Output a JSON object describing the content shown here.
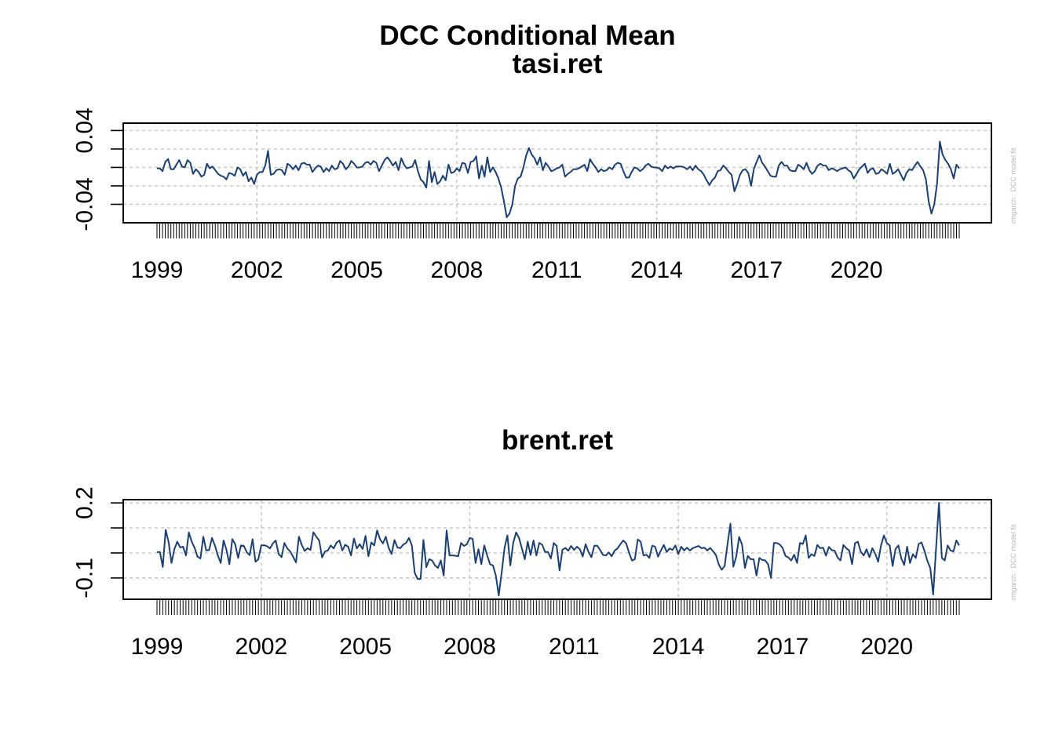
{
  "figure_title": "DCC Conditional Mean",
  "series_color": "#1b3f73",
  "chart_data": [
    {
      "type": "line",
      "title": "tasi.ret",
      "x_start": "1999-01",
      "frequency": "monthly",
      "x_tick_labels": [
        "1999",
        "2002",
        "2005",
        "2008",
        "2011",
        "2014",
        "2017",
        "2020"
      ],
      "x_tick_values": [
        1999,
        2002,
        2005,
        2008,
        2011,
        2014,
        2017,
        2020
      ],
      "y_ticks": [
        0.04,
        0.02,
        0.0,
        -0.02,
        -0.04
      ],
      "y_tick_labels": [
        "0.04",
        "-0.04"
      ],
      "ylim": [
        -0.06,
        0.048
      ],
      "grid": true,
      "watermark": "rmgarch : DCC model fit",
      "values": [
        -0.001,
        -0.001,
        -0.004,
        0.006,
        0.009,
        -0.002,
        -0.002,
        0.003,
        0.008,
        0.001,
        0.0,
        0.008,
        0.005,
        -0.007,
        -0.002,
        -0.005,
        -0.01,
        -0.008,
        0.004,
        -0.001,
        0.001,
        -0.003,
        -0.007,
        -0.009,
        -0.01,
        -0.013,
        -0.006,
        -0.007,
        -0.009,
        -0.0,
        -0.002,
        -0.009,
        -0.005,
        -0.015,
        -0.011,
        -0.018,
        -0.008,
        -0.005,
        -0.005,
        0.002,
        0.018,
        -0.008,
        -0.007,
        -0.003,
        -0.002,
        -0.003,
        -0.008,
        0.004,
        0.002,
        -0.002,
        0.002,
        -0.003,
        0.004,
        0.005,
        0.003,
        0.003,
        -0.005,
        -0.001,
        0.002,
        0.001,
        -0.005,
        -0.001,
        -0.004,
        0.002,
        -0.002,
        -0.001,
        0.007,
        0.004,
        -0.002,
        0.001,
        0.007,
        0.004,
        0.0,
        0.0,
        0.001,
        0.005,
        0.006,
        0.003,
        0.007,
        0.005,
        -0.004,
        0.002,
        0.008,
        0.011,
        0.007,
        0.002,
        0.006,
        -0.003,
        0.01,
        0.003,
        -0.001,
        0.0,
        0.001,
        0.008,
        -0.004,
        -0.013,
        -0.016,
        -0.022,
        0.007,
        -0.016,
        -0.005,
        -0.018,
        -0.015,
        -0.009,
        -0.014,
        0.003,
        -0.006,
        -0.005,
        -0.001,
        -0.004,
        0.005,
        0.004,
        -0.006,
        0.006,
        0.007,
        0.012,
        -0.012,
        0.002,
        -0.01,
        0.011,
        -0.005,
        -0.0,
        -0.005,
        -0.012,
        -0.022,
        -0.037,
        -0.054,
        -0.05,
        -0.04,
        -0.02,
        -0.012,
        -0.01,
        0.0,
        0.013,
        0.021,
        0.014,
        0.01,
        0.003,
        0.011,
        -0.003,
        0.005,
        0.001,
        -0.004,
        -0.003,
        -0.001,
        0.0,
        0.003,
        -0.01,
        -0.007,
        -0.005,
        -0.002,
        -0.002,
        -0.001,
        0.001,
        0.003,
        -0.004,
        0.009,
        0.004,
        0.0,
        -0.005,
        -0.002,
        -0.004,
        -0.003,
        -0.0,
        -0.002,
        0.003,
        0.005,
        0.004,
        -0.004,
        -0.011,
        -0.011,
        -0.005,
        0.0,
        -0.001,
        -0.004,
        -0.002,
        0.002,
        0.004,
        0.001,
        0.0,
        -0.0,
        -0.001,
        -0.004,
        0.002,
        -0.001,
        0.001,
        -0.001,
        0.001,
        0.001,
        0.001,
        0.0,
        -0.002,
        0.001,
        -0.003,
        0.002,
        -0.002,
        -0.004,
        -0.008,
        -0.014,
        -0.019,
        -0.014,
        -0.011,
        -0.004,
        -0.003,
        0.002,
        -0.001,
        -0.005,
        -0.008,
        -0.026,
        -0.018,
        -0.008,
        -0.003,
        -0.002,
        -0.006,
        -0.02,
        -0.002,
        0.006,
        0.013,
        0.005,
        0.001,
        -0.004,
        -0.009,
        -0.01,
        -0.01,
        0.002,
        0.006,
        0.002,
        0.002,
        -0.003,
        -0.004,
        -0.004,
        0.003,
        0.001,
        -0.002,
        0.005,
        -0.003,
        -0.007,
        -0.004,
        0.002,
        0.004,
        0.002,
        0.002,
        -0.003,
        -0.001,
        -0.002,
        -0.004,
        -0.002,
        -0.001,
        0.0,
        -0.003,
        -0.005,
        -0.012,
        -0.007,
        -0.002,
        0.001,
        0.004,
        -0.006,
        -0.002,
        -0.001,
        -0.007,
        -0.006,
        -0.002,
        -0.004,
        -0.007,
        0.004,
        -0.007,
        -0.005,
        -0.002,
        -0.008,
        -0.014,
        -0.006,
        -0.002,
        -0.003,
        0.002,
        0.006,
        0.001,
        -0.003,
        -0.013,
        -0.037,
        -0.05,
        -0.04,
        -0.018,
        0.028,
        0.014,
        0.008,
        0.004,
        -0.002,
        -0.012,
        0.003,
        -0.001
      ]
    },
    {
      "type": "line",
      "title": "brent.ret",
      "x_start": "1999-01",
      "frequency": "monthly",
      "x_tick_labels": [
        "1999",
        "2002",
        "2005",
        "2008",
        "2011",
        "2014",
        "2017",
        "2020"
      ],
      "x_tick_values": [
        1999,
        2002,
        2005,
        2008,
        2011,
        2014,
        2017,
        2020
      ],
      "y_ticks": [
        0.2,
        0.1,
        0.0,
        -0.1
      ],
      "y_tick_labels": [
        "0.2",
        "-0.1"
      ],
      "ylim": [
        -0.185,
        0.213
      ],
      "grid": true,
      "watermark": "rmgarch : DCC model fit",
      "values": [
        0.003,
        0.004,
        -0.056,
        0.092,
        0.044,
        -0.04,
        0.015,
        0.045,
        0.022,
        0.025,
        -0.01,
        0.082,
        0.045,
        0.02,
        -0.015,
        -0.022,
        0.065,
        0.01,
        0.012,
        0.06,
        0.03,
        -0.01,
        -0.04,
        0.05,
        0.012,
        -0.045,
        0.055,
        0.035,
        -0.02,
        0.03,
        0.028,
        0.003,
        -0.009,
        0.055,
        -0.035,
        -0.025,
        0.03,
        0.031,
        0.027,
        0.018,
        0.038,
        0.05,
        -0.004,
        -0.017,
        0.04,
        0.018,
        0.006,
        -0.015,
        -0.038,
        0.065,
        0.032,
        0.008,
        0.019,
        0.012,
        0.083,
        0.065,
        0.05,
        -0.018,
        0.006,
        0.01,
        0.03,
        0.018,
        0.041,
        0.05,
        0.01,
        0.033,
        0.025,
        -0.01,
        0.058,
        0.018,
        0.035,
        0.016,
        0.068,
        -0.013,
        0.042,
        0.03,
        0.09,
        0.055,
        0.038,
        0.065,
        0.02,
        -0.004,
        0.052,
        0.022,
        0.019,
        0.033,
        0.04,
        0.06,
        0.03,
        -0.08,
        -0.104,
        -0.104,
        0.052,
        -0.057,
        -0.025,
        -0.03,
        -0.05,
        -0.06,
        -0.03,
        -0.09,
        0.09,
        -0.01,
        -0.01,
        -0.011,
        -0.013,
        0.04,
        0.028,
        0.035,
        0.06,
        0.056,
        -0.04,
        0.015,
        -0.045,
        0.03,
        -0.01,
        -0.045,
        -0.05,
        -0.09,
        -0.17,
        -0.08,
        0.02,
        0.07,
        -0.05,
        0.04,
        0.082,
        0.06,
        0.018,
        -0.025,
        0.045,
        -0.008,
        0.05,
        -0.01,
        0.04,
        0.033,
        0.004,
        0.004,
        -0.022,
        0.04,
        0.028,
        -0.07,
        0.013,
        0.02,
        0.009,
        0.028,
        0.012,
        0.025,
        0.015,
        -0.014,
        0.035,
        0.004,
        -0.017,
        0.029,
        0.029,
        0.012,
        -0.008,
        -0.01,
        0.002,
        -0.013,
        0.009,
        0.018,
        0.035,
        0.05,
        0.038,
        0.001,
        -0.03,
        -0.025,
        0.054,
        0.045,
        -0.01,
        -0.007,
        -0.02,
        0.029,
        0.025,
        -0.015,
        0.01,
        0.032,
        0.004,
        0.018,
        0.012,
        0.03,
        -0.005,
        0.025,
        0.01,
        0.021,
        0.01,
        0.019,
        0.024,
        0.028,
        0.019,
        0.021,
        0.01,
        0.02,
        0.007,
        -0.009,
        -0.047,
        -0.067,
        -0.052,
        0.036,
        0.117,
        -0.055,
        -0.015,
        0.064,
        0.034,
        -0.06,
        -0.012,
        -0.025,
        -0.025,
        -0.09,
        -0.02,
        -0.028,
        -0.03,
        -0.045,
        -0.1,
        0.04,
        0.04,
        0.034,
        0.02,
        -0.012,
        -0.018,
        -0.03,
        -0.007,
        -0.04,
        0.04,
        0.036,
        0.07,
        -0.02,
        -0.005,
        -0.012,
        0.032,
        0.019,
        0.021,
        -0.011,
        0.024,
        0.011,
        0.009,
        -0.018,
        -0.03,
        0.032,
        0.019,
        0.01,
        -0.045,
        0.039,
        0.045,
        0.005,
        -0.01,
        0.015,
        -0.017,
        0.019,
        -0.003,
        -0.035,
        0.03,
        0.07,
        0.04,
        0.03,
        -0.052,
        0.016,
        0.03,
        -0.022,
        -0.048,
        0.025,
        -0.04,
        -0.005,
        -0.02,
        0.036,
        0.042,
        0.008,
        -0.032,
        -0.06,
        -0.166,
        0.018,
        0.2,
        -0.02,
        -0.03,
        0.03,
        0.01,
        0.006,
        0.05,
        0.03
      ]
    }
  ]
}
